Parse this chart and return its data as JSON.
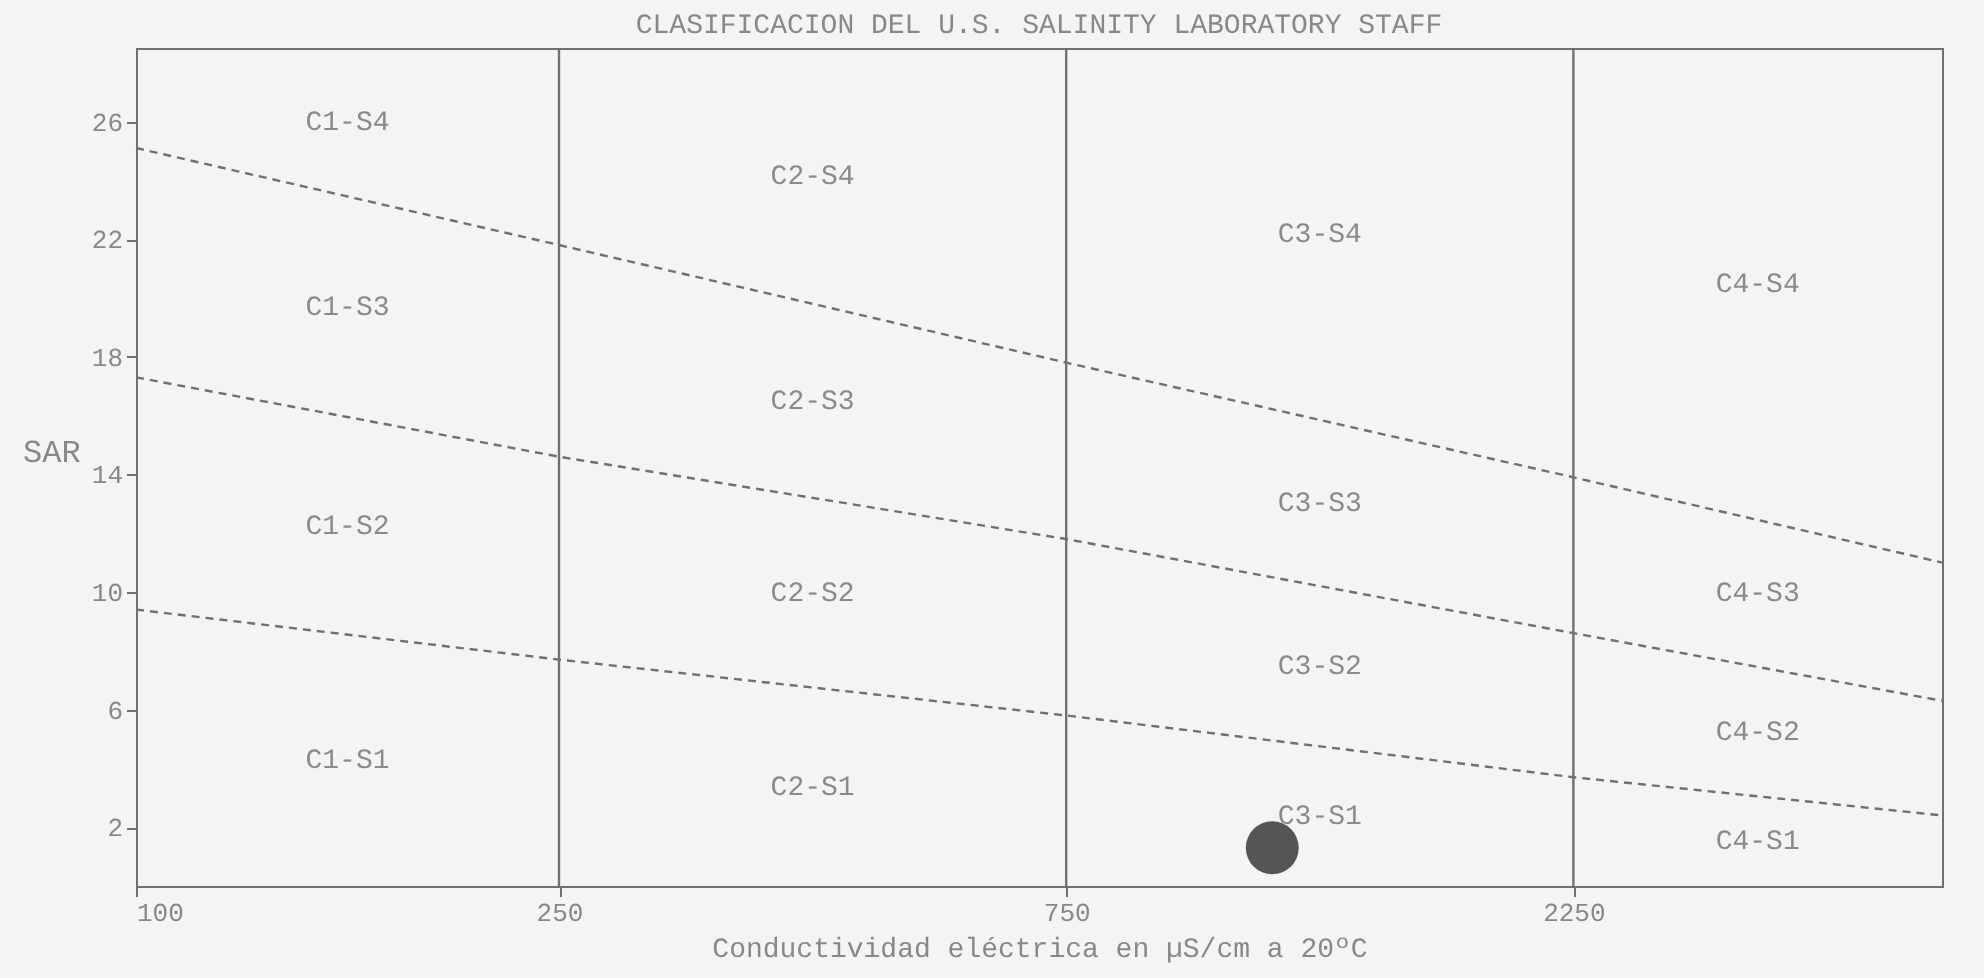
{
  "chart_data": {
    "type": "line",
    "title": "CLASIFICACION DEL U.S. SALINITY LABORATORY STAFF",
    "xlabel": "Conductividad eléctrica en µS/cm a 20ºC",
    "ylabel": "SAR",
    "log": "x",
    "xlim": [
      100,
      5000
    ],
    "xticks": [
      100,
      250,
      750,
      2250
    ],
    "ylim": [
      0,
      28.5
    ],
    "yticks": [
      2,
      6,
      10,
      14,
      18,
      22,
      26
    ],
    "grid": false,
    "series": [
      {
        "color": "#707070",
        "line_style": "dashed",
        "x": [
          100,
          250,
          750,
          2250,
          5000
        ],
        "values": [
          25.1,
          21.8,
          17.8,
          13.9,
          11.0
        ]
      },
      {
        "color": "#707070",
        "line_style": "dashed",
        "x": [
          100,
          250,
          750,
          2250,
          5000
        ],
        "values": [
          17.3,
          14.6,
          11.8,
          8.6,
          6.3
        ]
      },
      {
        "color": "#707070",
        "line_style": "dashed",
        "x": [
          100,
          250,
          750,
          2250,
          5000
        ],
        "values": [
          9.4,
          7.7,
          5.8,
          3.7,
          2.4
        ]
      },
      {
        "type": "scatter",
        "color": "#555555",
        "x": [
          1172
        ],
        "values": [
          1.3
        ]
      }
    ],
    "ref_lines": [
      {
        "axis": "x",
        "value": 250,
        "color": "#707070"
      },
      {
        "axis": "x",
        "value": 750,
        "color": "#707070"
      },
      {
        "axis": "x",
        "value": 2250,
        "color": "#707070"
      }
    ],
    "annotations": [
      "C1-S4",
      "C1-S3",
      "C1-S2",
      "C1-S1",
      "C2-S4",
      "C2-S3",
      "C2-S2",
      "C2-S1",
      "C3-S4",
      "C3-S3",
      "C3-S2",
      "C3-S1",
      "C4-S4",
      "C4-S3",
      "C4-S2",
      "C4-S1"
    ]
  }
}
